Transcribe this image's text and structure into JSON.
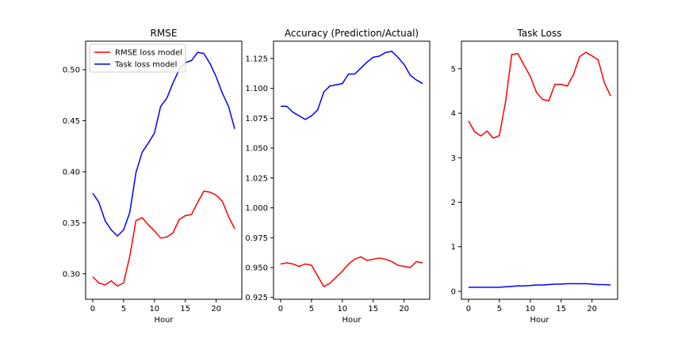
{
  "colors": {
    "rmse_series": "#ff0000",
    "task_series": "#0000ff",
    "axes": "#000000",
    "background": "#ffffff"
  },
  "chart_data": [
    {
      "type": "line",
      "title": "RMSE",
      "xlabel": "Hour",
      "ylabel": "",
      "grid": false,
      "legend": "top-left",
      "xlim": [
        -1.15,
        24.15
      ],
      "ylim": [
        0.275,
        0.528
      ],
      "xticks": [
        0,
        5,
        10,
        15,
        20
      ],
      "yticks": [
        0.3,
        0.35,
        0.4,
        0.45,
        0.5
      ],
      "ytick_labels": [
        "0.30",
        "0.35",
        "0.40",
        "0.45",
        "0.50"
      ],
      "x": [
        0,
        1,
        2,
        3,
        4,
        5,
        6,
        7,
        8,
        9,
        10,
        11,
        12,
        13,
        14,
        15,
        16,
        17,
        18,
        19,
        20,
        21,
        22,
        23
      ],
      "series": [
        {
          "name": "RMSE loss model",
          "color": "#ff0000",
          "values": [
            0.297,
            0.291,
            0.289,
            0.293,
            0.288,
            0.291,
            0.317,
            0.352,
            0.355,
            0.348,
            0.342,
            0.335,
            0.336,
            0.34,
            0.353,
            0.357,
            0.358,
            0.37,
            0.381,
            0.38,
            0.377,
            0.371,
            0.356,
            0.344
          ]
        },
        {
          "name": "Task loss model",
          "color": "#0000ff",
          "values": [
            0.379,
            0.37,
            0.352,
            0.343,
            0.337,
            0.343,
            0.36,
            0.399,
            0.419,
            0.428,
            0.438,
            0.464,
            0.472,
            0.487,
            0.5,
            0.507,
            0.509,
            0.517,
            0.516,
            0.506,
            0.493,
            0.477,
            0.464,
            0.442
          ]
        }
      ]
    },
    {
      "type": "line",
      "title": "Accuracy (Prediction/Actual)",
      "xlabel": "Hour",
      "ylabel": "",
      "grid": false,
      "xlim": [
        -1.15,
        24.15
      ],
      "ylim": [
        0.9235,
        1.1395
      ],
      "xticks": [
        0,
        5,
        10,
        15,
        20
      ],
      "yticks": [
        0.925,
        0.95,
        0.975,
        1.0,
        1.025,
        1.05,
        1.075,
        1.1,
        1.125
      ],
      "ytick_labels": [
        "0.925",
        "0.950",
        "0.975",
        "1.000",
        "1.025",
        "1.050",
        "1.075",
        "1.100",
        "1.125"
      ],
      "x": [
        0,
        1,
        2,
        3,
        4,
        5,
        6,
        7,
        8,
        9,
        10,
        11,
        12,
        13,
        14,
        15,
        16,
        17,
        18,
        19,
        20,
        21,
        22,
        23
      ],
      "series": [
        {
          "name": "RMSE loss model",
          "color": "#ff0000",
          "values": [
            0.953,
            0.954,
            0.953,
            0.951,
            0.953,
            0.952,
            0.943,
            0.934,
            0.937,
            0.942,
            0.947,
            0.953,
            0.957,
            0.959,
            0.956,
            0.957,
            0.958,
            0.957,
            0.955,
            0.952,
            0.951,
            0.95,
            0.955,
            0.954
          ]
        },
        {
          "name": "Task loss model",
          "color": "#0000ff",
          "values": [
            1.085,
            1.085,
            1.08,
            1.077,
            1.074,
            1.077,
            1.082,
            1.097,
            1.102,
            1.103,
            1.104,
            1.112,
            1.112,
            1.117,
            1.122,
            1.126,
            1.127,
            1.13,
            1.131,
            1.126,
            1.12,
            1.111,
            1.107,
            1.104
          ]
        }
      ]
    },
    {
      "type": "line",
      "title": "Task Loss",
      "xlabel": "Hour",
      "ylabel": "",
      "grid": false,
      "xlim": [
        -1.15,
        24.15
      ],
      "ylim": [
        -0.18,
        5.62
      ],
      "xticks": [
        0,
        5,
        10,
        15,
        20
      ],
      "yticks": [
        0,
        1,
        2,
        3,
        4,
        5
      ],
      "ytick_labels": [
        "0",
        "1",
        "2",
        "3",
        "4",
        "5"
      ],
      "x": [
        0,
        1,
        2,
        3,
        4,
        5,
        6,
        7,
        8,
        9,
        10,
        11,
        12,
        13,
        14,
        15,
        16,
        17,
        18,
        19,
        20,
        21,
        22,
        23
      ],
      "series": [
        {
          "name": "RMSE loss model",
          "color": "#ff0000",
          "values": [
            3.83,
            3.58,
            3.49,
            3.6,
            3.44,
            3.5,
            4.26,
            5.32,
            5.34,
            5.08,
            4.83,
            4.47,
            4.31,
            4.28,
            4.65,
            4.65,
            4.61,
            4.87,
            5.27,
            5.37,
            5.29,
            5.2,
            4.69,
            4.39
          ]
        },
        {
          "name": "Task loss model",
          "color": "#0000ff",
          "values": [
            0.09,
            0.09,
            0.09,
            0.09,
            0.09,
            0.09,
            0.1,
            0.11,
            0.12,
            0.12,
            0.13,
            0.14,
            0.14,
            0.15,
            0.16,
            0.16,
            0.17,
            0.17,
            0.17,
            0.17,
            0.16,
            0.15,
            0.15,
            0.14
          ]
        }
      ]
    }
  ]
}
